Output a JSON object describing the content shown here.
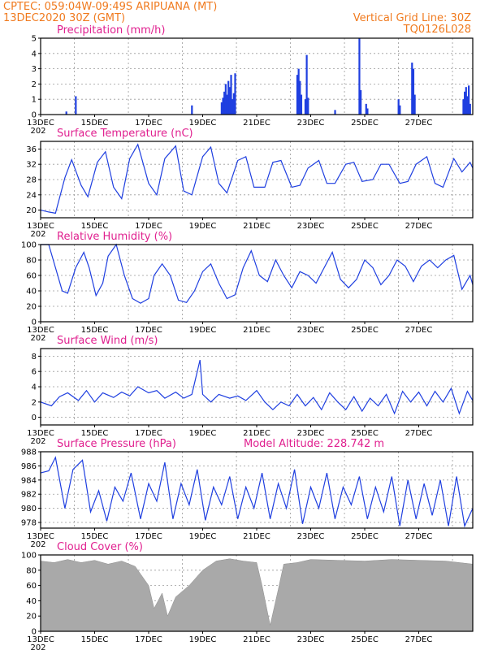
{
  "header": {
    "line1_left": "CPTEC:  059:04W-09:49S  ARIPUANA (MT)",
    "line2_left": "13DEC2020 30Z (GMT)",
    "line2_right": "Vertical Grid Line: 30Z",
    "line3_right": "TQ0126L028"
  },
  "x_axis": {
    "labels": [
      "13DEC",
      "15DEC",
      "17DEC",
      "19DEC",
      "21DEC",
      "23DEC",
      "25DEC",
      "27DEC"
    ],
    "year_fragment": "202"
  },
  "colors": {
    "line": "#1f3fe0",
    "cloud": "#a9a9a9",
    "title": "#e0208f",
    "header": "#f07a1e"
  },
  "chart_data": [
    {
      "type": "bar",
      "title": "Precipitation (mm/h)",
      "x_unit": "days since 13DEC2020 00Z",
      "ylim": [
        0,
        5
      ],
      "yticks": [
        0,
        1,
        2,
        3,
        4,
        5
      ],
      "grid": true,
      "bars": [
        [
          0.95,
          0.2
        ],
        [
          1.3,
          1.2
        ],
        [
          5.6,
          0.6
        ],
        [
          6.7,
          0.8
        ],
        [
          6.75,
          1.1
        ],
        [
          6.8,
          1.5
        ],
        [
          6.85,
          2.0
        ],
        [
          6.9,
          1.3
        ],
        [
          6.95,
          2.2
        ],
        [
          7.0,
          1.8
        ],
        [
          7.05,
          2.6
        ],
        [
          7.1,
          1.0
        ],
        [
          7.15,
          1.4
        ],
        [
          7.2,
          2.7
        ],
        [
          9.5,
          2.6
        ],
        [
          9.55,
          3.0
        ],
        [
          9.6,
          2.2
        ],
        [
          9.65,
          1.3
        ],
        [
          9.8,
          1.0
        ],
        [
          9.85,
          3.9
        ],
        [
          9.9,
          1.1
        ],
        [
          10.9,
          0.3
        ],
        [
          11.8,
          5.0
        ],
        [
          11.85,
          1.6
        ],
        [
          12.05,
          0.7
        ],
        [
          12.1,
          0.4
        ],
        [
          13.25,
          1.0
        ],
        [
          13.3,
          0.6
        ],
        [
          13.75,
          3.4
        ],
        [
          13.8,
          3.0
        ],
        [
          13.85,
          1.3
        ],
        [
          15.65,
          1.0
        ],
        [
          15.7,
          1.5
        ],
        [
          15.75,
          1.8
        ],
        [
          15.8,
          1.2
        ],
        [
          15.85,
          1.9
        ],
        [
          15.9,
          0.7
        ]
      ]
    },
    {
      "type": "line",
      "title": "Surface Temperature (nC)",
      "ylim": [
        18,
        38
      ],
      "yticks": [
        20,
        24,
        28,
        32,
        36
      ],
      "grid": true,
      "x": [
        0,
        0.3,
        0.55,
        0.9,
        1.15,
        1.5,
        1.75,
        2.1,
        2.4,
        2.7,
        3.0,
        3.3,
        3.6,
        4.0,
        4.3,
        4.6,
        5.0,
        5.3,
        5.6,
        6.0,
        6.3,
        6.6,
        6.9,
        7.3,
        7.6,
        7.9,
        8.3,
        8.6,
        8.9,
        9.3,
        9.6,
        9.9,
        10.3,
        10.6,
        10.9,
        11.3,
        11.6,
        11.9,
        12.3,
        12.6,
        12.9,
        13.3,
        13.6,
        13.9,
        14.3,
        14.6,
        14.9,
        15.3,
        15.6,
        15.9,
        16.0
      ],
      "y": [
        20,
        19.5,
        19.2,
        28.5,
        33.2,
        26.5,
        23.5,
        32.5,
        35.3,
        26.0,
        23.0,
        33.5,
        37.2,
        27.0,
        24.0,
        33.5,
        36.8,
        25.0,
        24.0,
        34.0,
        36.5,
        27.0,
        24.5,
        33.0,
        34.0,
        26.0,
        26.0,
        32.5,
        33.0,
        26.0,
        26.5,
        31.0,
        33.0,
        27.0,
        27.0,
        32.0,
        32.5,
        27.5,
        28.0,
        32.0,
        32.0,
        27.0,
        27.5,
        32.0,
        34.0,
        27.0,
        26.0,
        33.5,
        30.0,
        32.5,
        31.0
      ]
    },
    {
      "type": "line",
      "title": "Relative Humidity (%)",
      "ylim": [
        0,
        100
      ],
      "yticks": [
        0,
        20,
        40,
        60,
        80,
        100
      ],
      "grid": true,
      "x": [
        0,
        0.3,
        0.55,
        0.8,
        1.0,
        1.3,
        1.6,
        1.8,
        2.05,
        2.3,
        2.5,
        2.8,
        3.1,
        3.4,
        3.7,
        4.0,
        4.2,
        4.5,
        4.8,
        5.1,
        5.4,
        5.7,
        6.0,
        6.3,
        6.6,
        6.9,
        7.2,
        7.5,
        7.8,
        8.1,
        8.4,
        8.7,
        9.0,
        9.3,
        9.6,
        9.9,
        10.2,
        10.5,
        10.8,
        11.1,
        11.4,
        11.7,
        12.0,
        12.3,
        12.6,
        12.9,
        13.2,
        13.5,
        13.8,
        14.1,
        14.4,
        14.7,
        15.0,
        15.3,
        15.6,
        15.9,
        16.0
      ],
      "y": [
        100,
        100,
        70,
        40,
        37,
        70,
        90,
        70,
        34,
        50,
        85,
        100,
        60,
        30,
        24,
        30,
        60,
        75,
        60,
        28,
        25,
        40,
        65,
        75,
        50,
        30,
        35,
        70,
        92,
        60,
        52,
        80,
        60,
        44,
        65,
        60,
        50,
        70,
        90,
        55,
        44,
        55,
        80,
        70,
        48,
        60,
        80,
        72,
        52,
        72,
        80,
        70,
        80,
        86,
        42,
        60,
        48
      ]
    },
    {
      "type": "line",
      "title": "Surface Wind (m/s)",
      "ylim": [
        -1,
        9
      ],
      "yticks": [
        0,
        2,
        4,
        6,
        8
      ],
      "grid": true,
      "x": [
        0,
        0.4,
        0.7,
        1.0,
        1.4,
        1.7,
        2.0,
        2.3,
        2.7,
        3.0,
        3.3,
        3.6,
        4.0,
        4.3,
        4.6,
        5.0,
        5.3,
        5.6,
        5.9,
        6.0,
        6.3,
        6.6,
        7.0,
        7.3,
        7.6,
        8.0,
        8.3,
        8.6,
        8.9,
        9.2,
        9.5,
        9.8,
        10.1,
        10.4,
        10.7,
        11.0,
        11.3,
        11.6,
        11.9,
        12.2,
        12.5,
        12.8,
        13.1,
        13.4,
        13.7,
        14.0,
        14.3,
        14.6,
        14.9,
        15.2,
        15.5,
        15.8,
        16.0
      ],
      "y": [
        2.0,
        1.5,
        2.7,
        3.2,
        2.2,
        3.5,
        2.0,
        3.2,
        2.6,
        3.3,
        2.8,
        4.0,
        3.2,
        3.5,
        2.5,
        3.3,
        2.5,
        3.0,
        7.5,
        3.0,
        2.0,
        3.0,
        2.5,
        2.8,
        2.2,
        3.5,
        2.0,
        1.0,
        2.0,
        1.5,
        3.0,
        1.5,
        2.6,
        1.0,
        3.2,
        2.0,
        1.0,
        2.7,
        0.8,
        2.5,
        1.5,
        3.0,
        0.5,
        3.4,
        2.0,
        3.3,
        1.5,
        3.4,
        2.0,
        3.8,
        0.5,
        3.4,
        2.2
      ]
    },
    {
      "type": "line",
      "title": "Surface Pressure (hPa)",
      "annotation": "Model Altitude: 228.742 m",
      "ylim": [
        977.2,
        988
      ],
      "yticks": [
        978,
        980,
        982,
        984,
        986,
        988
      ],
      "grid": true,
      "x": [
        0,
        0.3,
        0.55,
        0.9,
        1.2,
        1.55,
        1.85,
        2.15,
        2.45,
        2.75,
        3.05,
        3.35,
        3.7,
        4.0,
        4.3,
        4.6,
        4.9,
        5.2,
        5.5,
        5.8,
        6.1,
        6.4,
        6.7,
        7.0,
        7.3,
        7.6,
        7.9,
        8.2,
        8.5,
        8.8,
        9.1,
        9.4,
        9.7,
        10.0,
        10.3,
        10.6,
        10.9,
        11.2,
        11.5,
        11.8,
        12.1,
        12.4,
        12.7,
        13.0,
        13.3,
        13.6,
        13.9,
        14.2,
        14.5,
        14.8,
        15.1,
        15.4,
        15.7,
        16.0
      ],
      "y": [
        985.0,
        985.3,
        987.2,
        980.0,
        985.5,
        986.8,
        979.5,
        982.5,
        978.2,
        983.0,
        981.0,
        985.0,
        978.5,
        983.5,
        981.0,
        986.5,
        978.5,
        983.5,
        980.5,
        985.5,
        978.3,
        983.0,
        980.5,
        984.5,
        978.5,
        983.0,
        980.0,
        985.0,
        978.5,
        983.5,
        980.0,
        985.5,
        977.8,
        983.0,
        980.0,
        985.0,
        978.5,
        983.0,
        980.5,
        984.5,
        978.5,
        983.0,
        979.5,
        984.5,
        977.5,
        984.0,
        978.5,
        983.5,
        979.0,
        984.0,
        977.5,
        984.5,
        977.5,
        980.0
      ]
    },
    {
      "type": "area",
      "title": "Cloud Cover (%)",
      "ylim": [
        0,
        100
      ],
      "yticks": [
        0,
        20,
        40,
        60,
        80,
        100
      ],
      "grid": true,
      "x": [
        0,
        0.5,
        1.0,
        1.5,
        2.0,
        2.5,
        3.0,
        3.5,
        4.0,
        4.2,
        4.5,
        4.7,
        5.0,
        5.5,
        6.0,
        6.5,
        7.0,
        7.5,
        8.0,
        8.2,
        8.5,
        8.8,
        9.0,
        9.5,
        10.0,
        11.0,
        12.0,
        13.0,
        14.0,
        15.0,
        15.5,
        16.0
      ],
      "y": [
        92,
        90,
        94,
        90,
        93,
        88,
        92,
        85,
        60,
        30,
        50,
        20,
        45,
        60,
        80,
        92,
        95,
        92,
        90,
        60,
        8,
        55,
        88,
        90,
        94,
        93,
        92,
        94,
        93,
        92,
        90,
        88
      ]
    }
  ]
}
